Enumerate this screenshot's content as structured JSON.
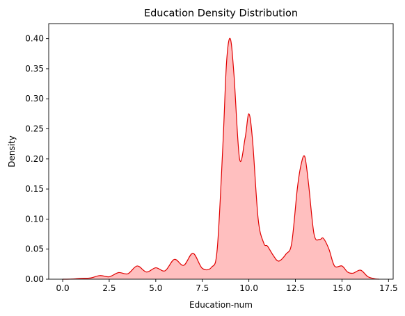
{
  "chart_data": {
    "type": "area",
    "title": "Education Density Distribution",
    "xlabel": "Education-num",
    "ylabel": "Density",
    "xlim": [
      -0.75,
      17.75
    ],
    "ylim": [
      0,
      0.425
    ],
    "xticks": [
      0,
      2.5,
      5,
      7.5,
      10,
      12.5,
      15,
      17.5
    ],
    "xtick_labels": [
      "0.0",
      "2.5",
      "5.0",
      "7.5",
      "10.0",
      "12.5",
      "15.0",
      "17.5"
    ],
    "yticks": [
      0,
      0.05,
      0.1,
      0.15,
      0.2,
      0.25,
      0.3,
      0.35,
      0.4
    ],
    "ytick_labels": [
      "0.00",
      "0.05",
      "0.10",
      "0.15",
      "0.20",
      "0.25",
      "0.30",
      "0.35",
      "0.40"
    ],
    "grid": false,
    "line_color": "#e00000",
    "fill_color": "#ffbfbf",
    "series": [
      {
        "x": [
          0.0,
          0.5,
          1.0,
          1.5,
          2.0,
          2.5,
          3.0,
          3.5,
          4.0,
          4.5,
          5.0,
          5.5,
          6.0,
          6.5,
          7.0,
          7.5,
          8.0,
          8.3,
          8.6,
          8.8,
          9.0,
          9.2,
          9.5,
          9.8,
          10.0,
          10.2,
          10.5,
          10.8,
          11.0,
          11.3,
          11.6,
          12.0,
          12.3,
          12.6,
          12.8,
          13.0,
          13.2,
          13.5,
          13.8,
          14.0,
          14.3,
          14.6,
          15.0,
          15.3,
          15.6,
          16.0,
          16.4,
          16.8,
          17.0
        ],
        "y": [
          0.0,
          0.0003,
          0.0015,
          0.002,
          0.006,
          0.004,
          0.011,
          0.009,
          0.022,
          0.012,
          0.019,
          0.014,
          0.033,
          0.023,
          0.043,
          0.018,
          0.02,
          0.05,
          0.22,
          0.36,
          0.4,
          0.34,
          0.2,
          0.235,
          0.275,
          0.23,
          0.1,
          0.06,
          0.055,
          0.04,
          0.03,
          0.042,
          0.06,
          0.15,
          0.19,
          0.204,
          0.16,
          0.075,
          0.066,
          0.068,
          0.05,
          0.022,
          0.022,
          0.012,
          0.01,
          0.015,
          0.004,
          0.0005,
          0.0
        ]
      }
    ]
  }
}
